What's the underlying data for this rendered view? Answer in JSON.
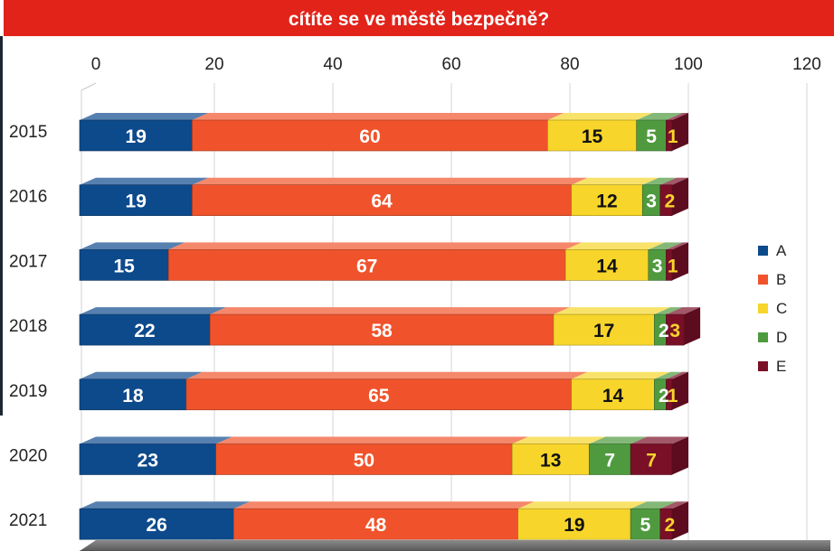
{
  "chart_data": {
    "type": "bar",
    "orientation": "horizontal",
    "stacked": true,
    "title": "cítíte se ve městě bezpečně?",
    "categories": [
      "2015",
      "2016",
      "2017",
      "2018",
      "2019",
      "2020",
      "2021"
    ],
    "series": [
      {
        "name": "A",
        "color": "#0d4a8c",
        "values": [
          19,
          19,
          15,
          22,
          18,
          23,
          26
        ]
      },
      {
        "name": "B",
        "color": "#f0532b",
        "values": [
          60,
          64,
          67,
          58,
          65,
          50,
          48
        ]
      },
      {
        "name": "C",
        "color": "#f7d52a",
        "values": [
          15,
          12,
          14,
          17,
          14,
          13,
          19
        ]
      },
      {
        "name": "D",
        "color": "#4f9a3f",
        "values": [
          5,
          3,
          3,
          2,
          2,
          7,
          5
        ]
      },
      {
        "name": "E",
        "color": "#7a1028",
        "values": [
          1,
          2,
          1,
          3,
          1,
          7,
          2
        ]
      }
    ],
    "xlim": [
      0,
      120
    ],
    "xticks": [
      0,
      20,
      40,
      60,
      80,
      100,
      120
    ],
    "grid": true,
    "legend_position": "right",
    "data_labels": true
  }
}
